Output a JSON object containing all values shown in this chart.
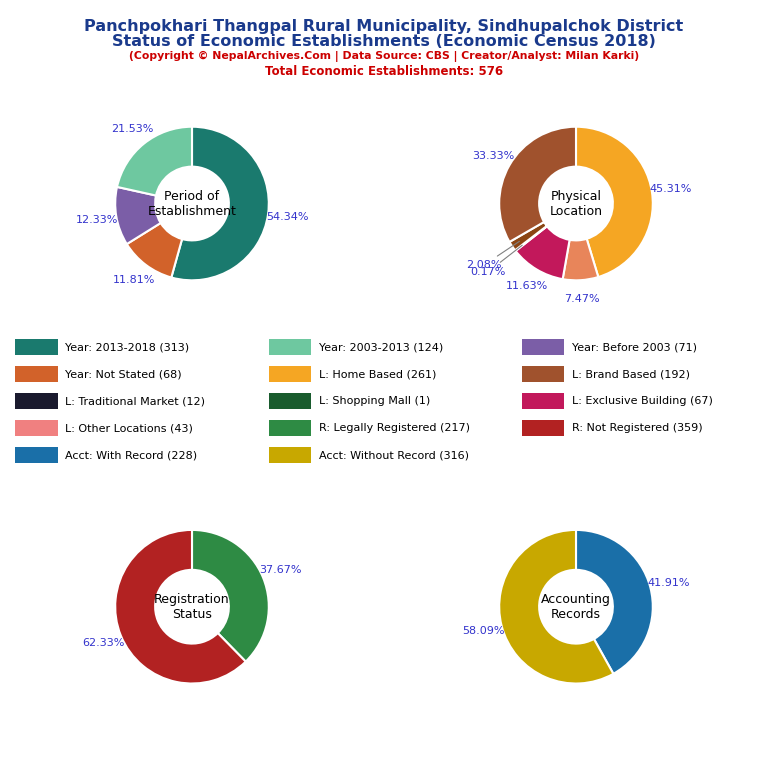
{
  "title_line1": "Panchpokhari Thangpal Rural Municipality, Sindhupalchok District",
  "title_line2": "Status of Economic Establishments (Economic Census 2018)",
  "subtitle": "(Copyright © NepalArchives.Com | Data Source: CBS | Creator/Analyst: Milan Karki)",
  "total": "Total Economic Establishments: 576",
  "title_color": "#1a3a8c",
  "subtitle_color": "#cc0000",
  "pie1_label": "Period of\nEstablishment",
  "pie1_values": [
    313,
    68,
    71,
    124
  ],
  "pie1_colors": [
    "#1a7a6e",
    "#d2622a",
    "#7b5ea7",
    "#6ec8a0"
  ],
  "pie1_pct": [
    "54.34%",
    "11.81%",
    "12.33%",
    "21.53%"
  ],
  "pie2_label": "Physical\nLocation",
  "pie2_values": [
    261,
    43,
    67,
    1,
    12,
    192
  ],
  "pie2_colors": [
    "#f5a623",
    "#e8855a",
    "#c2185b",
    "#1a1a6e",
    "#8b4513",
    "#a0522d"
  ],
  "pie2_pct": [
    "45.31%",
    "7.47%",
    "11.63%",
    "0.17%",
    "2.08%",
    "33.33%"
  ],
  "pie3_label": "Registration\nStatus",
  "pie3_values": [
    217,
    359
  ],
  "pie3_colors": [
    "#2e8b44",
    "#b22222"
  ],
  "pie3_pct": [
    "37.67%",
    "62.33%"
  ],
  "pie4_label": "Accounting\nRecords",
  "pie4_values": [
    228,
    316
  ],
  "pie4_colors": [
    "#1a6fa8",
    "#c8a800"
  ],
  "pie4_pct": [
    "41.91%",
    "58.09%"
  ],
  "legend_items_col1": [
    {
      "label": "Year: 2013-2018 (313)",
      "color": "#1a7a6e"
    },
    {
      "label": "Year: Not Stated (68)",
      "color": "#d2622a"
    },
    {
      "label": "L: Traditional Market (12)",
      "color": "#1a1a2e"
    },
    {
      "label": "L: Other Locations (43)",
      "color": "#f08080"
    },
    {
      "label": "Acct: With Record (228)",
      "color": "#1a6fa8"
    }
  ],
  "legend_items_col2": [
    {
      "label": "Year: 2003-2013 (124)",
      "color": "#6ec8a0"
    },
    {
      "label": "L: Home Based (261)",
      "color": "#f5a623"
    },
    {
      "label": "L: Shopping Mall (1)",
      "color": "#2e8b44"
    },
    {
      "label": "R: Legally Registered (217)",
      "color": "#2e8b44"
    },
    {
      "label": "Acct: Without Record (316)",
      "color": "#c8a800"
    }
  ],
  "legend_items_col3": [
    {
      "label": "Year: Before 2003 (71)",
      "color": "#7b5ea7"
    },
    {
      "label": "L: Brand Based (192)",
      "color": "#a0522d"
    },
    {
      "label": "L: Exclusive Building (67)",
      "color": "#c2185b"
    },
    {
      "label": "R: Not Registered (359)",
      "color": "#b22222"
    }
  ]
}
